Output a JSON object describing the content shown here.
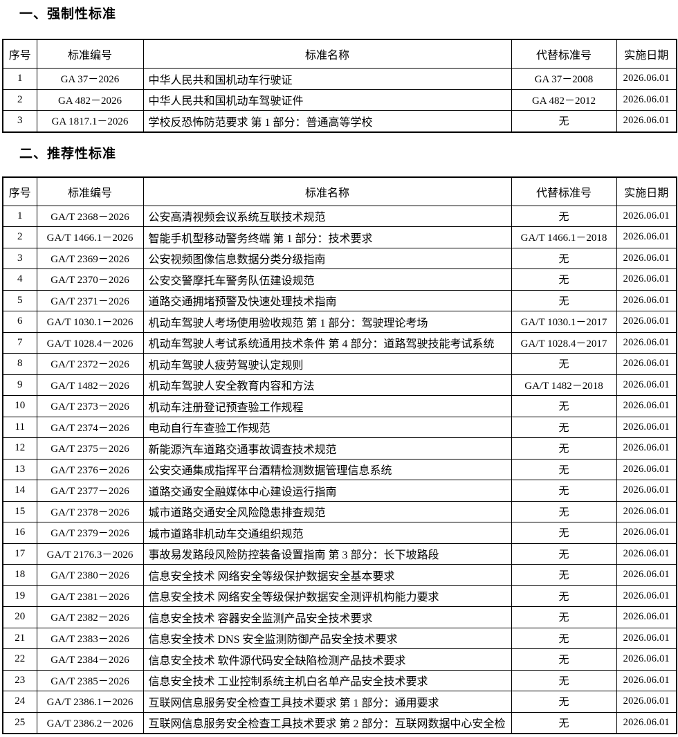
{
  "page": {
    "background": "#ffffff",
    "text_color": "#000000",
    "border_color": "#000000"
  },
  "sections": [
    {
      "title": "一、强制性标准",
      "columns": [
        "序号",
        "标准编号",
        "标准名称",
        "代替标准号",
        "实施日期"
      ],
      "rows": [
        [
          "1",
          "GA 37－2026",
          "中华人民共和国机动车行驶证",
          "GA 37－2008",
          "2026.06.01"
        ],
        [
          "2",
          "GA 482－2026",
          "中华人民共和国机动车驾驶证件",
          "GA 482－2012",
          "2026.06.01"
        ],
        [
          "3",
          "GA 1817.1－2026",
          "学校反恐怖防范要求 第 1 部分：普通高等学校",
          "无",
          "2026.06.01"
        ]
      ]
    },
    {
      "title": "二、推荐性标准",
      "columns": [
        "序号",
        "标准编号",
        "标准名称",
        "代替标准号",
        "实施日期"
      ],
      "rows": [
        [
          "1",
          "GA/T 2368－2026",
          "公安高清视频会议系统互联技术规范",
          "无",
          "2026.06.01"
        ],
        [
          "2",
          "GA/T 1466.1－2026",
          "智能手机型移动警务终端 第 1 部分：技术要求",
          "GA/T 1466.1－2018",
          "2026.06.01"
        ],
        [
          "3",
          "GA/T 2369－2026",
          "公安视频图像信息数据分类分级指南",
          "无",
          "2026.06.01"
        ],
        [
          "4",
          "GA/T 2370－2026",
          "公安交警摩托车警务队伍建设规范",
          "无",
          "2026.06.01"
        ],
        [
          "5",
          "GA/T 2371－2026",
          "道路交通拥堵预警及快速处理技术指南",
          "无",
          "2026.06.01"
        ],
        [
          "6",
          "GA/T 1030.1－2026",
          "机动车驾驶人考场使用验收规范 第 1 部分：驾驶理论考场",
          "GA/T 1030.1－2017",
          "2026.06.01"
        ],
        [
          "7",
          "GA/T 1028.4－2026",
          "机动车驾驶人考试系统通用技术条件 第 4 部分：道路驾驶技能考试系统",
          "GA/T 1028.4－2017",
          "2026.06.01"
        ],
        [
          "8",
          "GA/T 2372－2026",
          "机动车驾驶人疲劳驾驶认定规则",
          "无",
          "2026.06.01"
        ],
        [
          "9",
          "GA/T 1482－2026",
          "机动车驾驶人安全教育内容和方法",
          "GA/T 1482－2018",
          "2026.06.01"
        ],
        [
          "10",
          "GA/T 2373－2026",
          "机动车注册登记预查验工作规程",
          "无",
          "2026.06.01"
        ],
        [
          "11",
          "GA/T 2374－2026",
          "电动自行车查验工作规范",
          "无",
          "2026.06.01"
        ],
        [
          "12",
          "GA/T 2375－2026",
          "新能源汽车道路交通事故调查技术规范",
          "无",
          "2026.06.01"
        ],
        [
          "13",
          "GA/T 2376－2026",
          "公安交通集成指挥平台酒精检测数据管理信息系统",
          "无",
          "2026.06.01"
        ],
        [
          "14",
          "GA/T 2377－2026",
          "道路交通安全融媒体中心建设运行指南",
          "无",
          "2026.06.01"
        ],
        [
          "15",
          "GA/T 2378－2026",
          "城市道路交通安全风险隐患排查规范",
          "无",
          "2026.06.01"
        ],
        [
          "16",
          "GA/T 2379－2026",
          "城市道路非机动车交通组织规范",
          "无",
          "2026.06.01"
        ],
        [
          "17",
          "GA/T 2176.3－2026",
          "事故易发路段风险防控装备设置指南 第 3 部分：长下坡路段",
          "无",
          "2026.06.01"
        ],
        [
          "18",
          "GA/T 2380－2026",
          "信息安全技术 网络安全等级保护数据安全基本要求",
          "无",
          "2026.06.01"
        ],
        [
          "19",
          "GA/T 2381－2026",
          "信息安全技术 网络安全等级保护数据安全测评机构能力要求",
          "无",
          "2026.06.01"
        ],
        [
          "20",
          "GA/T 2382－2026",
          "信息安全技术 容器安全监测产品安全技术要求",
          "无",
          "2026.06.01"
        ],
        [
          "21",
          "GA/T 2383－2026",
          "信息安全技术 DNS 安全监测防御产品安全技术要求",
          "无",
          "2026.06.01"
        ],
        [
          "22",
          "GA/T 2384－2026",
          "信息安全技术 软件源代码安全缺陷检测产品技术要求",
          "无",
          "2026.06.01"
        ],
        [
          "23",
          "GA/T 2385－2026",
          "信息安全技术 工业控制系统主机白名单产品安全技术要求",
          "无",
          "2026.06.01"
        ],
        [
          "24",
          "GA/T 2386.1－2026",
          "互联网信息服务安全检查工具技术要求 第 1 部分：通用要求",
          "无",
          "2026.06.01"
        ],
        [
          "25",
          "GA/T 2386.2－2026",
          "互联网信息服务安全检查工具技术要求 第 2 部分：互联网数据中心安全检",
          "无",
          "2026.06.01"
        ]
      ]
    }
  ]
}
